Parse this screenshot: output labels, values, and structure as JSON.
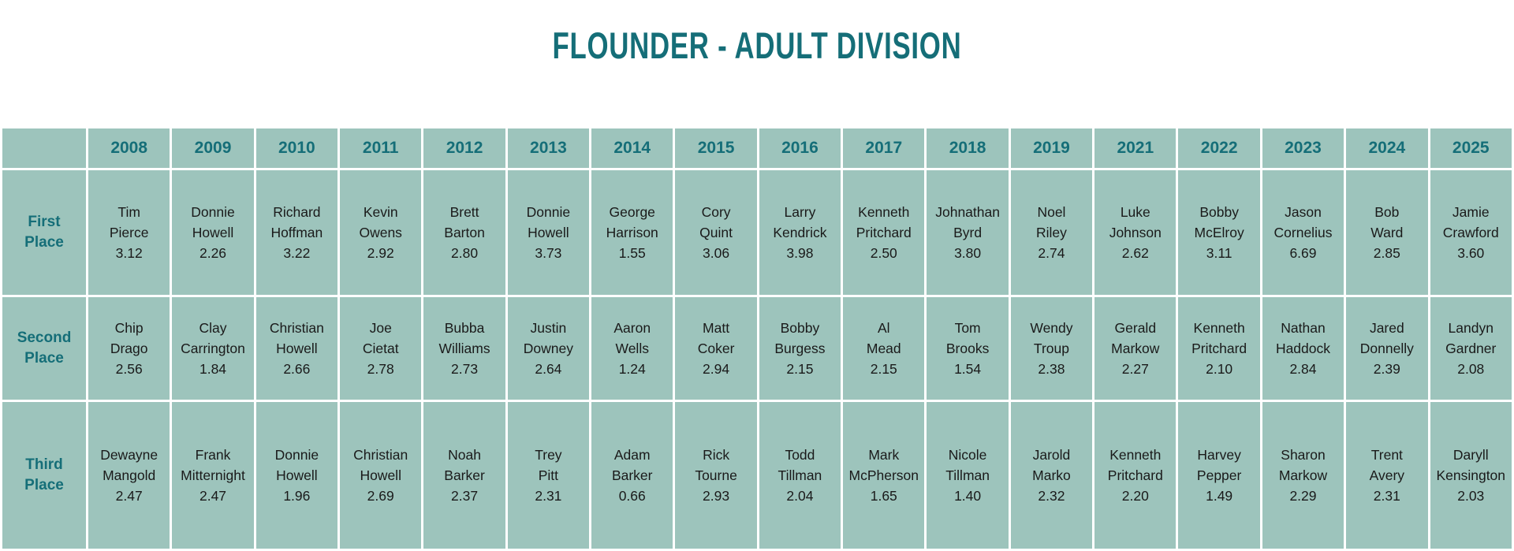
{
  "title": "FLOUNDER - ADULT DIVISION",
  "colors": {
    "accent_teal": "#156e78",
    "cell_background": "#9dc4bc",
    "body_text": "#1a1a1a"
  },
  "table": {
    "corner_label": "",
    "years": [
      "2008",
      "2009",
      "2010",
      "2011",
      "2012",
      "2013",
      "2014",
      "2015",
      "2016",
      "2017",
      "2018",
      "2019",
      "2021",
      "2022",
      "2023",
      "2024",
      "2025"
    ],
    "rows": [
      {
        "label": "First Place",
        "entries": [
          {
            "year": "2008",
            "name": "Tim Pierce",
            "weight": "3.12"
          },
          {
            "year": "2009",
            "name": "Donnie Howell",
            "weight": "2.26"
          },
          {
            "year": "2010",
            "name": "Richard Hoffman",
            "weight": "3.22"
          },
          {
            "year": "2011",
            "name": "Kevin Owens",
            "weight": "2.92"
          },
          {
            "year": "2012",
            "name": "Brett Barton",
            "weight": "2.80"
          },
          {
            "year": "2013",
            "name": "Donnie Howell",
            "weight": "3.73"
          },
          {
            "year": "2014",
            "name": "George Harrison",
            "weight": "1.55"
          },
          {
            "year": "2015",
            "name": "Cory Quint",
            "weight": "3.06"
          },
          {
            "year": "2016",
            "name": "Larry Kendrick",
            "weight": "3.98"
          },
          {
            "year": "2017",
            "name": "Kenneth Pritchard",
            "weight": "2.50"
          },
          {
            "year": "2018",
            "name": "Johnathan Byrd",
            "weight": "3.80"
          },
          {
            "year": "2019",
            "name": "Noel Riley",
            "weight": "2.74"
          },
          {
            "year": "2021",
            "name": "Luke Johnson",
            "weight": "2.62"
          },
          {
            "year": "2022",
            "name": "Bobby McElroy",
            "weight": "3.11"
          },
          {
            "year": "2023",
            "name": "Jason Cornelius",
            "weight": "6.69"
          },
          {
            "year": "2024",
            "name": "Bob Ward",
            "weight": "2.85"
          },
          {
            "year": "2025",
            "name": "Jamie Crawford",
            "weight": "3.60"
          }
        ]
      },
      {
        "label": "Second Place",
        "entries": [
          {
            "year": "2008",
            "name": "Chip Drago",
            "weight": "2.56"
          },
          {
            "year": "2009",
            "name": "Clay Carrington",
            "weight": "1.84"
          },
          {
            "year": "2010",
            "name": "Christian Howell",
            "weight": "2.66"
          },
          {
            "year": "2011",
            "name": "Joe Cietat",
            "weight": "2.78"
          },
          {
            "year": "2012",
            "name": "Bubba Williams",
            "weight": "2.73"
          },
          {
            "year": "2013",
            "name": "Justin Downey",
            "weight": "2.64"
          },
          {
            "year": "2014",
            "name": "Aaron Wells",
            "weight": "1.24"
          },
          {
            "year": "2015",
            "name": "Matt Coker",
            "weight": "2.94"
          },
          {
            "year": "2016",
            "name": "Bobby Burgess",
            "weight": "2.15"
          },
          {
            "year": "2017",
            "name": "Al Mead",
            "weight": "2.15"
          },
          {
            "year": "2018",
            "name": "Tom Brooks",
            "weight": "1.54"
          },
          {
            "year": "2019",
            "name": "Wendy Troup",
            "weight": "2.38"
          },
          {
            "year": "2021",
            "name": "Gerald Markow",
            "weight": "2.27"
          },
          {
            "year": "2022",
            "name": "Kenneth Pritchard",
            "weight": "2.10"
          },
          {
            "year": "2023",
            "name": "Nathan Haddock",
            "weight": "2.84"
          },
          {
            "year": "2024",
            "name": "Jared Donnelly",
            "weight": "2.39"
          },
          {
            "year": "2025",
            "name": "Landyn Gardner",
            "weight": "2.08"
          }
        ]
      },
      {
        "label": "Third Place",
        "entries": [
          {
            "year": "2008",
            "name": "Dewayne Mangold",
            "weight": "2.47"
          },
          {
            "year": "2009",
            "name": "Frank Mitternight",
            "weight": "2.47"
          },
          {
            "year": "2010",
            "name": "Donnie Howell",
            "weight": "1.96"
          },
          {
            "year": "2011",
            "name": "Christian Howell",
            "weight": "2.69"
          },
          {
            "year": "2012",
            "name": "Noah Barker",
            "weight": "2.37"
          },
          {
            "year": "2013",
            "name": "Trey Pitt",
            "weight": "2.31"
          },
          {
            "year": "2014",
            "name": "Adam Barker",
            "weight": "0.66"
          },
          {
            "year": "2015",
            "name": "Rick Tourne",
            "weight": "2.93"
          },
          {
            "year": "2016",
            "name": "Todd Tillman",
            "weight": "2.04"
          },
          {
            "year": "2017",
            "name": "Mark McPherson",
            "weight": "1.65"
          },
          {
            "year": "2018",
            "name": "Nicole Tillman",
            "weight": "1.40"
          },
          {
            "year": "2019",
            "name": "Jarold Marko",
            "weight": "2.32"
          },
          {
            "year": "2021",
            "name": "Kenneth Pritchard",
            "weight": "2.20"
          },
          {
            "year": "2022",
            "name": "Harvey Pepper",
            "weight": "1.49"
          },
          {
            "year": "2023",
            "name": "Sharon Markow",
            "weight": "2.29"
          },
          {
            "year": "2024",
            "name": "Trent Avery",
            "weight": "2.31"
          },
          {
            "year": "2025",
            "name": "Daryll Kensington",
            "weight": "2.03"
          }
        ]
      }
    ]
  }
}
